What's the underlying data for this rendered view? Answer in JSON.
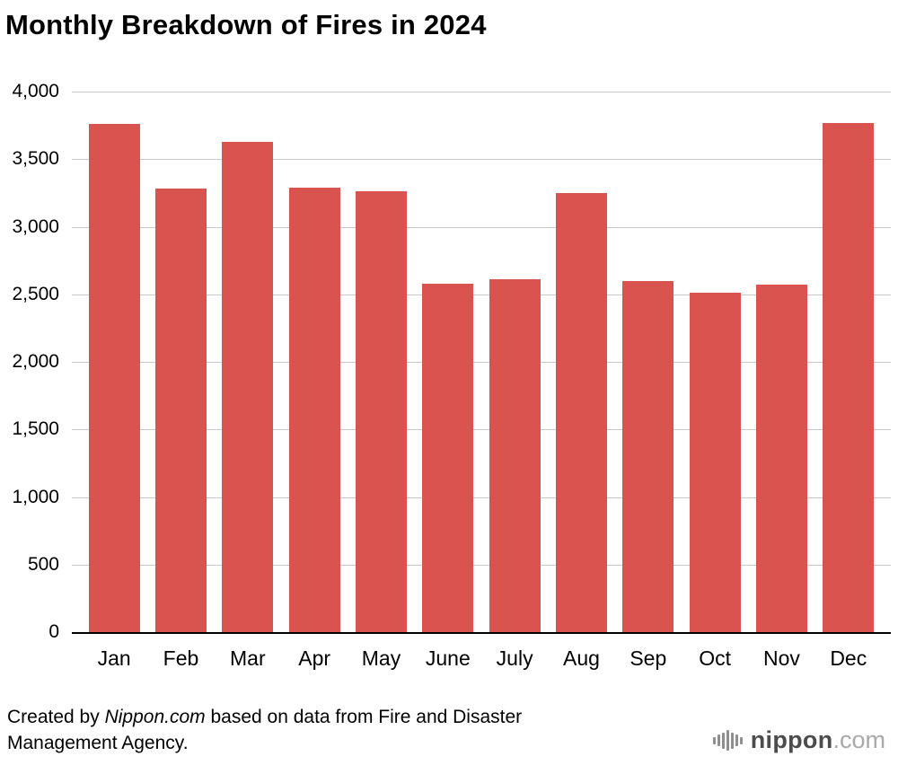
{
  "title": "Monthly Breakdown of Fires in 2024",
  "chart_data": {
    "type": "bar",
    "title": "Monthly Breakdown of Fires in 2024",
    "categories": [
      "Jan",
      "Feb",
      "Mar",
      "Apr",
      "May",
      "June",
      "July",
      "Aug",
      "Sep",
      "Oct",
      "Nov",
      "Dec"
    ],
    "values": [
      3760,
      3280,
      3630,
      3290,
      3260,
      2580,
      2610,
      3250,
      2600,
      2510,
      2570,
      3770
    ],
    "xlabel": "",
    "ylabel": "",
    "ylim": [
      0,
      4000
    ],
    "yticks": [
      0,
      500,
      1000,
      1500,
      2000,
      2500,
      3000,
      3500,
      4000
    ],
    "ytick_labels": [
      "0",
      "500",
      "1,000",
      "1,500",
      "2,000",
      "2,500",
      "3,000",
      "3,500",
      "4,000"
    ],
    "bar_color": "#d9534f",
    "grid": true,
    "legend": "none"
  },
  "footer": {
    "credit_prefix": "Created by",
    "credit_site": "Nippon.com",
    "credit_suffix": "based on data from Fire and Disaster Management Agency.",
    "logo_name": "nippon",
    "logo_tld": ".com",
    "logo_mark_bar_heights": [
      8,
      13,
      18,
      23,
      18,
      13,
      8
    ]
  }
}
